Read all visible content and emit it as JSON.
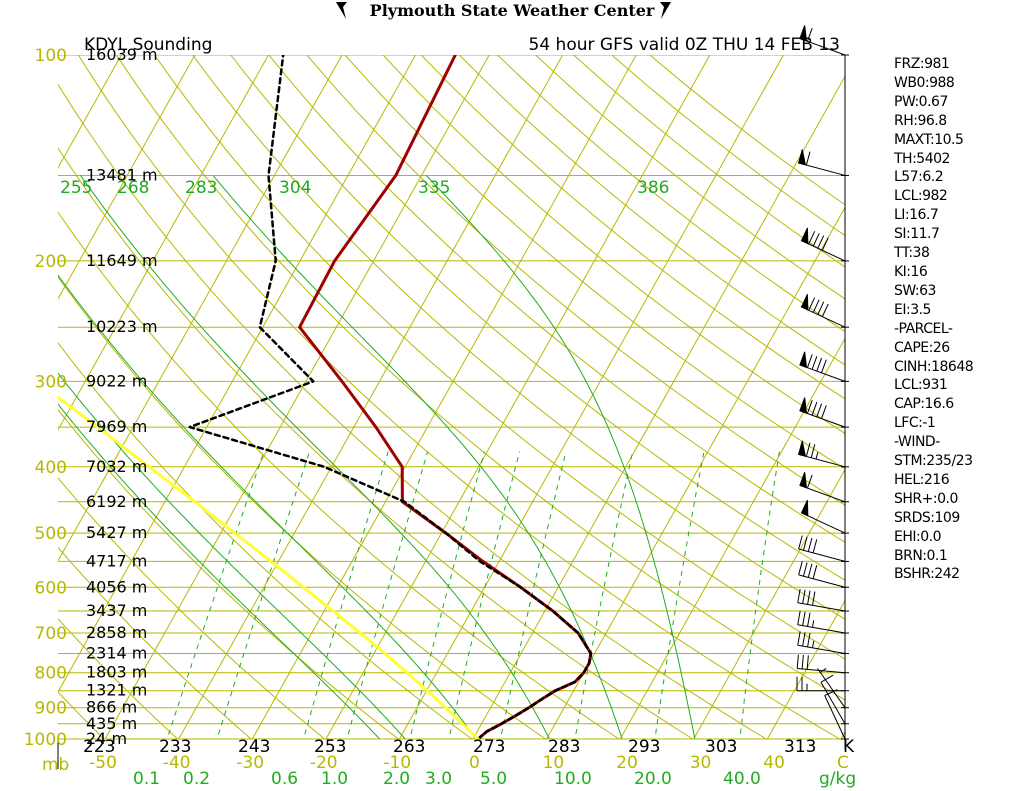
{
  "header": {
    "title": "Plymouth State Weather Center"
  },
  "chart_data": {
    "type": "line",
    "chart_kind": "skew-T log-P sounding",
    "title": "KDYL Sounding",
    "subtitle": "54 hour GFS valid 0Z THU 14 FEB 13",
    "pressure_unit": "mb",
    "mixing_ratio_unit": "g/kg",
    "adiabat_unit": "K",
    "pressure_range_mb": [
      1000,
      100
    ],
    "temperature_range_c": [
      -50,
      50
    ],
    "pressure_labels": [
      {
        "p": 100,
        "text": "100"
      },
      {
        "p": 200,
        "text": "200"
      },
      {
        "p": 300,
        "text": "300"
      },
      {
        "p": 400,
        "text": "400"
      },
      {
        "p": 500,
        "text": "500"
      },
      {
        "p": 600,
        "text": "600"
      },
      {
        "p": 700,
        "text": "700"
      },
      {
        "p": 800,
        "text": "800"
      },
      {
        "p": 900,
        "text": "900"
      },
      {
        "p": 1000,
        "text": "1000"
      }
    ],
    "isobars_mb": [
      100,
      150,
      200,
      250,
      300,
      350,
      400,
      450,
      500,
      550,
      600,
      650,
      700,
      750,
      800,
      850,
      900,
      950,
      1000
    ],
    "height_labels": [
      {
        "p": 100,
        "text": "16039 m"
      },
      {
        "p": 150,
        "text": "13481 m"
      },
      {
        "p": 200,
        "text": "11649 m"
      },
      {
        "p": 250,
        "text": "10223 m"
      },
      {
        "p": 300,
        "text": "9022 m"
      },
      {
        "p": 350,
        "text": "7969 m"
      },
      {
        "p": 400,
        "text": "7032 m"
      },
      {
        "p": 450,
        "text": "6192 m"
      },
      {
        "p": 500,
        "text": "5427 m"
      },
      {
        "p": 550,
        "text": "4717 m"
      },
      {
        "p": 600,
        "text": "4056 m"
      },
      {
        "p": 650,
        "text": "3437 m"
      },
      {
        "p": 700,
        "text": "2858 m"
      },
      {
        "p": 750,
        "text": "2314 m"
      },
      {
        "p": 800,
        "text": "1803 m"
      },
      {
        "p": 850,
        "text": "1321 m"
      },
      {
        "p": 900,
        "text": "866 m"
      },
      {
        "p": 950,
        "text": "435 m"
      },
      {
        "p": 1000,
        "text": "24 m"
      }
    ],
    "temperature_ticks": [
      {
        "t": -50,
        "text": "-50"
      },
      {
        "t": -40,
        "text": "-40"
      },
      {
        "t": -30,
        "text": "-30"
      },
      {
        "t": -20,
        "text": "-20"
      },
      {
        "t": -10,
        "text": "-10"
      },
      {
        "t": 0,
        "text": "0"
      },
      {
        "t": 10,
        "text": "10"
      },
      {
        "t": 20,
        "text": "20"
      },
      {
        "t": 30,
        "text": "30"
      },
      {
        "t": 40,
        "text": "40"
      },
      {
        "t": 50,
        "text": "C"
      }
    ],
    "isotherms_c": [
      -110,
      -100,
      -90,
      -80,
      -70,
      -60,
      -50,
      -40,
      -30,
      -20,
      -10,
      0,
      10,
      20,
      30,
      40,
      50
    ],
    "dry_adiabat_labels": [
      {
        "theta": 223,
        "text": "223"
      },
      {
        "theta": 233,
        "text": "233"
      },
      {
        "theta": 243,
        "text": "243"
      },
      {
        "theta": 253,
        "text": "253"
      },
      {
        "theta": 263,
        "text": "263"
      },
      {
        "theta": 273,
        "text": "273"
      },
      {
        "theta": 283,
        "text": "283"
      },
      {
        "theta": 293,
        "text": "293"
      },
      {
        "theta": 303,
        "text": "303"
      },
      {
        "theta": 313,
        "text": "313"
      },
      {
        "theta": 323,
        "text": "K"
      }
    ],
    "dry_adiabats_k": [
      223,
      233,
      243,
      253,
      263,
      273,
      283,
      293,
      303,
      313,
      323,
      333,
      343,
      353,
      363,
      373,
      383,
      393,
      403,
      413,
      423,
      433,
      443,
      453,
      463,
      473
    ],
    "moist_adiabats_k": [
      255,
      268,
      283,
      304,
      335,
      386
    ],
    "mixing_ratio_lines_gkg": [
      {
        "w": 0.1,
        "text": "0.1"
      },
      {
        "w": 0.2,
        "text": "0.2"
      },
      {
        "w": 0.6,
        "text": "0.6"
      },
      {
        "w": 1.0,
        "text": "1.0"
      },
      {
        "w": 2.0,
        "text": "2.0"
      },
      {
        "w": 3.0,
        "text": "3.0"
      },
      {
        "w": 5.0,
        "text": "5.0"
      },
      {
        "w": 10.0,
        "text": "10.0"
      },
      {
        "w": 20.0,
        "text": "20.0"
      },
      {
        "w": 40.0,
        "text": "40.0"
      }
    ],
    "series": [
      {
        "key": "temperature",
        "color": "#a00000",
        "points": [
          {
            "p": 1000,
            "t": 0.7
          },
          {
            "p": 975,
            "t": 1.3
          },
          {
            "p": 950,
            "t": 2.7
          },
          {
            "p": 925,
            "t": 4.0
          },
          {
            "p": 900,
            "t": 5.2
          },
          {
            "p": 875,
            "t": 6.3
          },
          {
            "p": 850,
            "t": 7.5
          },
          {
            "p": 825,
            "t": 9.5
          },
          {
            "p": 800,
            "t": 10.0
          },
          {
            "p": 775,
            "t": 10.0
          },
          {
            "p": 750,
            "t": 9.5
          },
          {
            "p": 700,
            "t": 6.2
          },
          {
            "p": 650,
            "t": 1.1
          },
          {
            "p": 600,
            "t": -5.1
          },
          {
            "p": 550,
            "t": -12.2
          },
          {
            "p": 500,
            "t": -19.4
          },
          {
            "p": 450,
            "t": -27.7
          },
          {
            "p": 400,
            "t": -30.4
          },
          {
            "p": 350,
            "t": -37.0
          },
          {
            "p": 300,
            "t": -45.1
          },
          {
            "p": 250,
            "t": -55.0
          },
          {
            "p": 200,
            "t": -55.3
          },
          {
            "p": 150,
            "t": -53.5
          },
          {
            "p": 100,
            "t": -54.6
          }
        ]
      },
      {
        "key": "dewpoint",
        "color": "#000000",
        "dashed": true,
        "points": [
          {
            "p": 1000,
            "t": 0.7
          },
          {
            "p": 975,
            "t": 1.3
          },
          {
            "p": 950,
            "t": 2.7
          },
          {
            "p": 925,
            "t": 4.0
          },
          {
            "p": 900,
            "t": 5.2
          },
          {
            "p": 875,
            "t": 6.3
          },
          {
            "p": 850,
            "t": 7.5
          },
          {
            "p": 825,
            "t": 9.5
          },
          {
            "p": 800,
            "t": 10.0
          },
          {
            "p": 775,
            "t": 10.0
          },
          {
            "p": 750,
            "t": 9.5
          },
          {
            "p": 700,
            "t": 6.2
          },
          {
            "p": 650,
            "t": 1.1
          },
          {
            "p": 600,
            "t": -5.1
          },
          {
            "p": 550,
            "t": -12.6
          },
          {
            "p": 500,
            "t": -19.4
          },
          {
            "p": 450,
            "t": -27.4
          },
          {
            "p": 400,
            "t": -41.0
          },
          {
            "p": 350,
            "t": -62.3
          },
          {
            "p": 300,
            "t": -49.0
          },
          {
            "p": 250,
            "t": -60.4
          },
          {
            "p": 200,
            "t": -63.3
          },
          {
            "p": 150,
            "t": -70.8
          },
          {
            "p": 100,
            "t": -78.0
          }
        ]
      },
      {
        "key": "parcel",
        "color": "#ffff33",
        "points": [
          {
            "p": 1000,
            "t": 0.7
          },
          {
            "p": 950,
            "t": -2.6
          },
          {
            "p": 900,
            "t": -6.1
          },
          {
            "p": 850,
            "t": -9.9
          },
          {
            "p": 800,
            "t": -14.0
          },
          {
            "p": 750,
            "t": -18.5
          },
          {
            "p": 700,
            "t": -23.4
          },
          {
            "p": 650,
            "t": -28.8
          },
          {
            "p": 600,
            "t": -34.6
          },
          {
            "p": 550,
            "t": -41.0
          },
          {
            "p": 500,
            "t": -48.1
          },
          {
            "p": 450,
            "t": -55.9
          },
          {
            "p": 400,
            "t": -64.8
          },
          {
            "p": 350,
            "t": -74.8
          },
          {
            "p": 300,
            "t": -86.6
          },
          {
            "p": 250,
            "t": -100.6
          },
          {
            "p": 200,
            "t": -117.9
          },
          {
            "p": 150,
            "t": -140.4
          },
          {
            "p": 120,
            "t": -158.0
          }
        ]
      }
    ],
    "wind_barbs": [
      {
        "p": 100,
        "dir": 290,
        "kt": 60
      },
      {
        "p": 150,
        "dir": 285,
        "kt": 60
      },
      {
        "p": 200,
        "dir": 295,
        "kt": 90
      },
      {
        "p": 250,
        "dir": 295,
        "kt": 90
      },
      {
        "p": 300,
        "dir": 290,
        "kt": 90
      },
      {
        "p": 350,
        "dir": 290,
        "kt": 90
      },
      {
        "p": 400,
        "dir": 285,
        "kt": 75
      },
      {
        "p": 450,
        "dir": 290,
        "kt": 60
      },
      {
        "p": 500,
        "dir": 295,
        "kt": 50
      },
      {
        "p": 550,
        "dir": 285,
        "kt": 40
      },
      {
        "p": 600,
        "dir": 285,
        "kt": 40
      },
      {
        "p": 650,
        "dir": 280,
        "kt": 40
      },
      {
        "p": 700,
        "dir": 280,
        "kt": 35
      },
      {
        "p": 750,
        "dir": 280,
        "kt": 35
      },
      {
        "p": 800,
        "dir": 275,
        "kt": 30
      },
      {
        "p": 850,
        "dir": 270,
        "kt": 25
      },
      {
        "p": 900,
        "dir": 325,
        "kt": 5
      },
      {
        "p": 950,
        "dir": 330,
        "kt": 10
      },
      {
        "p": 1000,
        "dir": 335,
        "kt": 10
      }
    ],
    "indices": [
      "FRZ:981",
      "WB0:988",
      "PW:0.67",
      "RH:96.8",
      "MAXT:10.5",
      "TH:5402",
      "L57:6.2",
      "LCL:982",
      "LI:16.7",
      "SI:11.7",
      "TT:38",
      "KI:16",
      "SW:63",
      "EI:3.5",
      "-PARCEL-",
      "CAPE:26",
      "CINH:18648",
      "LCL:931",
      "CAP:16.6",
      "LFC:-1",
      "-WIND-",
      "STM:235/23",
      "HEL:216",
      "SHR+:0.0",
      "SRDS:109",
      "EHI:0.0",
      "BRN:0.1",
      "BSHR:242"
    ]
  },
  "colors": {
    "background": "#ffffff",
    "grid_gold": "#b8b800",
    "dry_adiabat": "#b8b800",
    "moist_adiabat": "#22aa22",
    "mixing_ratio": "#22aa22",
    "pressure_label": "#b8b800",
    "temperature_trace": "#a00000",
    "dewpoint_trace": "#000000",
    "parcel_trace": "#ffff33",
    "text": "#000000"
  }
}
